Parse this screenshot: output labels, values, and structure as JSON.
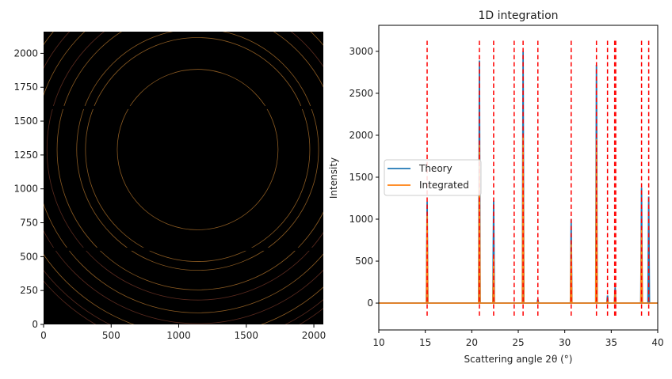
{
  "chart_data": [
    {
      "type": "heatmap",
      "description_visible": false,
      "xlim": [
        0,
        2070
      ],
      "ylim": [
        0,
        2160
      ],
      "x_ticks": [
        0,
        500,
        1000,
        1500,
        2000
      ],
      "y_ticks": [
        0,
        250,
        500,
        750,
        1000,
        1250,
        1500,
        1750,
        2000
      ],
      "colors": {
        "background": "#000000",
        "ring": "#8a5a22",
        "ring_dim": "#5a2a1e"
      }
    },
    {
      "type": "line",
      "title": "1D integration",
      "xlabel": "Scattering angle 2θ (°)",
      "ylabel": "Intensity",
      "xlim": [
        10,
        40
      ],
      "ylim": [
        -320,
        3310
      ],
      "x_ticks": [
        10,
        15,
        20,
        25,
        30,
        35,
        40
      ],
      "y_ticks": [
        0,
        500,
        1000,
        1500,
        2000,
        2500,
        3000
      ],
      "legend_position": "center-left",
      "grid": false,
      "series": [
        {
          "name": "Theory",
          "color": "#1f77b4",
          "peaks": [
            [
              15.2,
              1210
            ],
            [
              20.82,
              2890
            ],
            [
              22.35,
              1220
            ],
            [
              24.56,
              5
            ],
            [
              25.52,
              3000
            ],
            [
              27.11,
              44
            ],
            [
              30.69,
              1000
            ],
            [
              33.41,
              2840
            ],
            [
              34.6,
              90
            ],
            [
              35.42,
              186
            ],
            [
              38.26,
              1375
            ],
            [
              39.03,
              1270
            ]
          ]
        },
        {
          "name": "Integrated",
          "color": "#ff7f0e",
          "peaks": [
            [
              15.2,
              1050
            ],
            [
              20.82,
              1885
            ],
            [
              22.35,
              570
            ],
            [
              24.56,
              3
            ],
            [
              25.52,
              2000
            ],
            [
              27.11,
              20
            ],
            [
              30.69,
              745
            ],
            [
              33.41,
              1955
            ],
            [
              34.6,
              40
            ],
            [
              35.42,
              128
            ],
            [
              38.26,
              893
            ],
            [
              39.03,
              0
            ]
          ]
        }
      ],
      "reference_lines": {
        "color": "#ff0000",
        "style": "dashed",
        "y_range": [
          -150,
          3150
        ],
        "x": [
          15.2,
          20.82,
          22.35,
          24.56,
          25.52,
          27.11,
          30.69,
          33.41,
          34.6,
          35.37,
          35.48,
          38.26,
          39.03
        ]
      }
    }
  ]
}
